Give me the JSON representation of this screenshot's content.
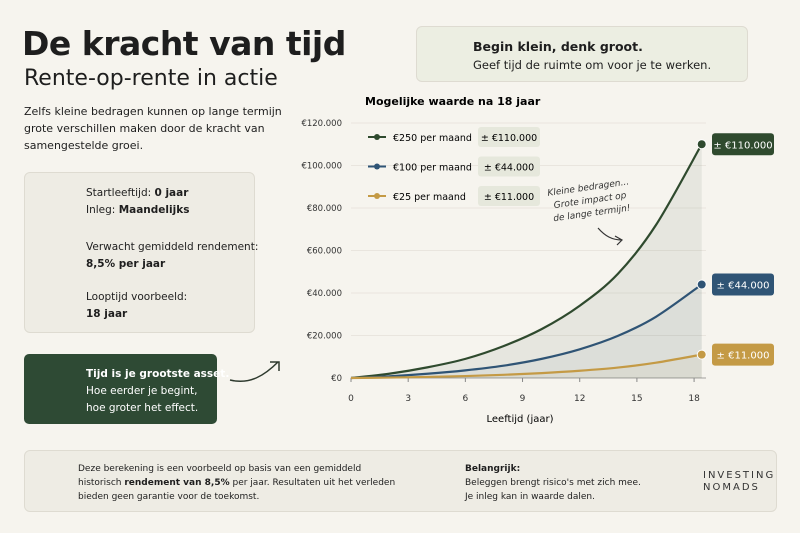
{
  "header": {
    "title": "De kracht van tijd",
    "subtitle": "Rente-op-rente in actie",
    "intro": "Zelfs kleine bedragen kunnen op lange termijn grote verschillen maken door de kracht van samengestelde groei."
  },
  "callout": {
    "title": "Begin klein, denk groot.",
    "text": "Geef tijd de ruimte om voor je te werken."
  },
  "assumptions": [
    {
      "lines": [
        {
          "label": "Startleeftijd:",
          "value": "0 jaar"
        },
        {
          "label": "Inleg:",
          "value": "Maandelijks"
        }
      ]
    },
    {
      "lines": [
        {
          "label": "Verwacht gemiddeld rendement:"
        },
        {
          "value": "8,5% per jaar"
        }
      ]
    },
    {
      "lines": [
        {
          "label": "Looptijd voorbeeld:"
        },
        {
          "value": "18 jaar"
        }
      ]
    }
  ],
  "tip": {
    "title": "Tijd is je grootste asset.",
    "lines": [
      "Hoe eerder je begint,",
      "hoe groter het effect."
    ]
  },
  "chart_data": {
    "type": "line",
    "title": "Mogelijke waarde na 18 jaar",
    "x_label": "Leeftijd (jaar)",
    "x": [
      0,
      2,
      4,
      6,
      8,
      10,
      12,
      14,
      16,
      18.4
    ],
    "xlim": [
      0,
      18.4
    ],
    "xticks": [
      0,
      3,
      6,
      9,
      12,
      15,
      18
    ],
    "ylim": [
      0,
      120000
    ],
    "yticks": [
      {
        "value": 0,
        "label": "€0"
      },
      {
        "value": 20000,
        "label": "€20.000"
      },
      {
        "value": 40000,
        "label": "€40.000"
      },
      {
        "value": 60000,
        "label": "€60.000"
      },
      {
        "value": 80000,
        "label": "€80.000"
      },
      {
        "value": 100000,
        "label": "€100.000"
      },
      {
        "value": 120000,
        "label": "€120.000"
      }
    ],
    "grid": true,
    "series": [
      {
        "name": "€250 per maand",
        "color": "#2f4a2e",
        "values": [
          0,
          2000,
          5000,
          9000,
          15000,
          23000,
          34000,
          49000,
          72000,
          110000
        ],
        "value_labels": [
          null,
          null,
          null,
          null,
          null,
          null,
          null,
          null,
          null,
          "± €110.000"
        ]
      },
      {
        "name": "€100 per maand",
        "color": "#2f5475",
        "values": [
          0,
          800,
          2000,
          3600,
          5800,
          9000,
          13500,
          19800,
          28800,
          44000
        ],
        "value_labels": [
          null,
          null,
          null,
          null,
          null,
          null,
          null,
          null,
          null,
          "± €44.000"
        ]
      },
      {
        "name": "€25 per maand",
        "color": "#c49a45",
        "values": [
          0,
          200,
          500,
          900,
          1500,
          2300,
          3400,
          4900,
          7200,
          11000
        ],
        "value_labels": [
          null,
          null,
          null,
          null,
          null,
          null,
          null,
          null,
          null,
          "± €11.000"
        ]
      }
    ],
    "annotation": [
      "Kleine bedragen...",
      "Grote impact op",
      "de lange termijn!"
    ]
  },
  "footer": {
    "disclaimer": [
      [
        "Deze berekening is een voorbeeld op basis van een gemiddeld"
      ],
      [
        "historisch",
        "rendement van 8,5%",
        "per jaar. Resultaten uit het verleden"
      ],
      [
        "bieden geen garantie voor de toekomst."
      ]
    ],
    "important": {
      "title": "Belangrijk:",
      "lines": [
        "Beleggen brengt risico's met zich mee.",
        "Je inleg kan in waarde dalen."
      ]
    },
    "logo": [
      "INVESTING",
      "NOMADS"
    ]
  }
}
